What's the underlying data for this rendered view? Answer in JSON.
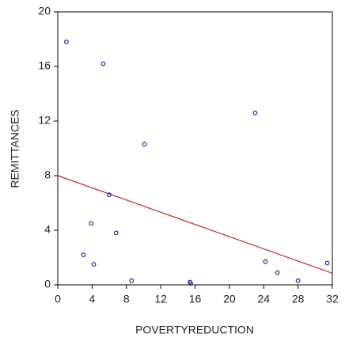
{
  "chart_data": {
    "type": "scatter",
    "x_label": "POVERTYREDUCTION",
    "y_label": "REMITTANCES",
    "points": {
      "color": "#1f2a9a",
      "x": [
        1.0,
        5.3,
        10.1,
        6.0,
        3.9,
        6.8,
        3.0,
        4.2,
        8.6,
        15.4,
        15.5,
        23.0,
        24.2,
        25.6,
        28.0,
        31.4
      ],
      "values": [
        17.8,
        16.2,
        10.3,
        6.6,
        4.5,
        3.8,
        2.2,
        1.5,
        0.3,
        0.2,
        0.1,
        12.6,
        1.7,
        0.9,
        0.3,
        1.6
      ]
    },
    "fit_line": {
      "color": "#b03030",
      "x": [
        0,
        32
      ],
      "values": [
        8.0,
        0.85
      ]
    },
    "xlim": [
      0,
      32
    ],
    "xticks": [
      0,
      4,
      8,
      12,
      16,
      20,
      24,
      28,
      32
    ],
    "ylim": [
      0,
      20
    ],
    "yticks": [
      0,
      4,
      8,
      12,
      16,
      20
    ]
  }
}
